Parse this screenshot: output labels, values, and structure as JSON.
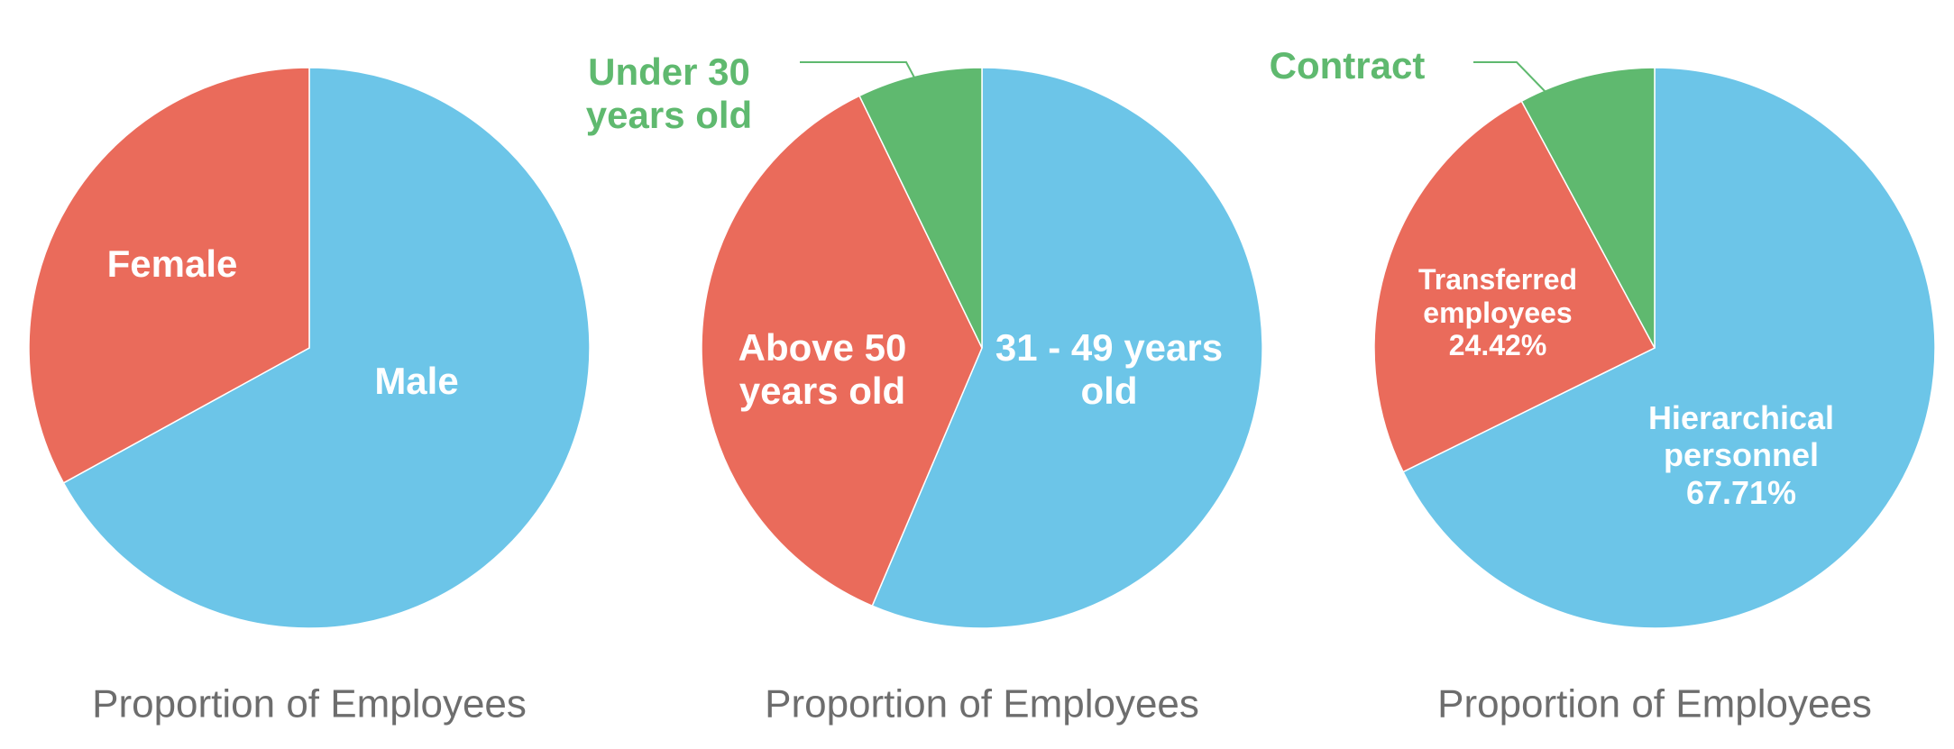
{
  "chart_data": [
    {
      "type": "pie",
      "title": "Proportion of Employees",
      "categories": [
        "Male",
        "Female"
      ],
      "values": [
        67,
        33
      ],
      "colors": [
        "#6cc5e8",
        "#ea6b5b"
      ]
    },
    {
      "type": "pie",
      "title": "Proportion of Employees",
      "categories": [
        "31 - 49 years old",
        "Above 50 years old",
        "Under 30 years old"
      ],
      "values": [
        56.4,
        36.4,
        7.2
      ],
      "colors": [
        "#6cc5e8",
        "#ea6b5b",
        "#5fb96f"
      ]
    },
    {
      "type": "pie",
      "title": "Proportion of Employees",
      "categories": [
        "Hierarchical personnel",
        "Transferred employees",
        "Contract"
      ],
      "values": [
        67.71,
        24.42,
        7.87
      ],
      "value_labels": [
        "67.71%",
        "24.42%",
        null
      ],
      "colors": [
        "#6cc5e8",
        "#ea6b5b",
        "#5fb96f"
      ]
    }
  ]
}
